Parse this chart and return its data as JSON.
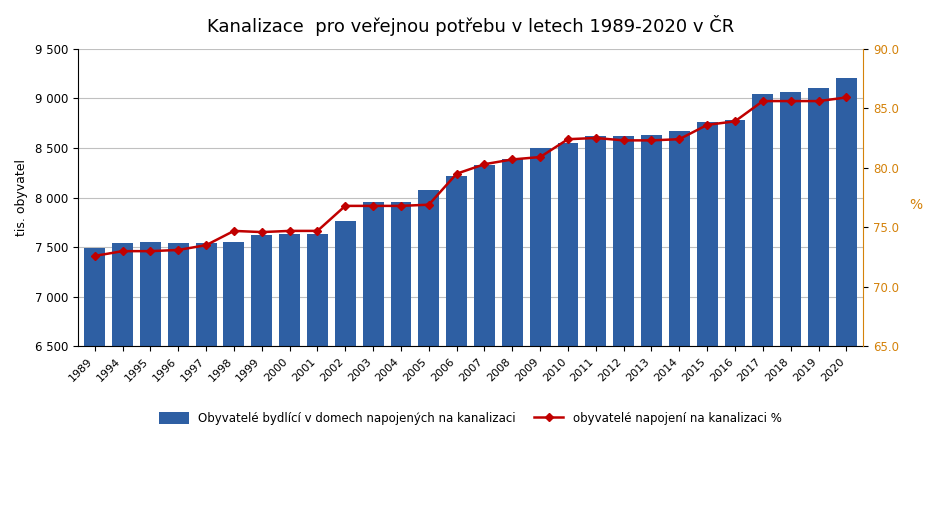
{
  "title": "Kanalizace  pro veřejnou potřebu v letech 1989-2020 v ČR",
  "years": [
    1989,
    1994,
    1995,
    1996,
    1997,
    1998,
    1999,
    2000,
    2001,
    2002,
    2003,
    2004,
    2005,
    2006,
    2007,
    2008,
    2009,
    2010,
    2011,
    2012,
    2013,
    2014,
    2015,
    2016,
    2017,
    2018,
    2019,
    2020
  ],
  "bar_values": [
    7490,
    7545,
    7555,
    7540,
    7540,
    7555,
    7620,
    7630,
    7630,
    7760,
    7960,
    7960,
    8080,
    8220,
    8330,
    8390,
    8500,
    8545,
    8620,
    8620,
    8630,
    8670,
    8760,
    8780,
    9040,
    9060,
    9100,
    9200
  ],
  "line_values": [
    72.6,
    73.0,
    73.0,
    73.1,
    73.5,
    74.7,
    74.6,
    74.7,
    74.7,
    76.8,
    76.8,
    76.8,
    76.9,
    79.5,
    80.3,
    80.7,
    80.9,
    82.4,
    82.5,
    82.3,
    82.3,
    82.4,
    83.6,
    83.9,
    85.6,
    85.6,
    85.6,
    85.9
  ],
  "bar_color": "#2E5FA3",
  "line_color": "#C00000",
  "ylabel_left": "tis. obyvatel",
  "ylabel_right": "%",
  "ylim_left": [
    6500,
    9500
  ],
  "ylim_right": [
    65.0,
    90.0
  ],
  "yticks_left": [
    6500,
    7000,
    7500,
    8000,
    8500,
    9000,
    9500
  ],
  "yticks_right": [
    65.0,
    70.0,
    75.0,
    80.0,
    85.0,
    90.0
  ],
  "legend_bar": "Obyvatelé bydlící v domech napojených na kanalizaci",
  "legend_line": "obyvatelé napojení na kanalizaci %",
  "background_color": "#FFFFFF",
  "grid_color": "#C0C0C0"
}
